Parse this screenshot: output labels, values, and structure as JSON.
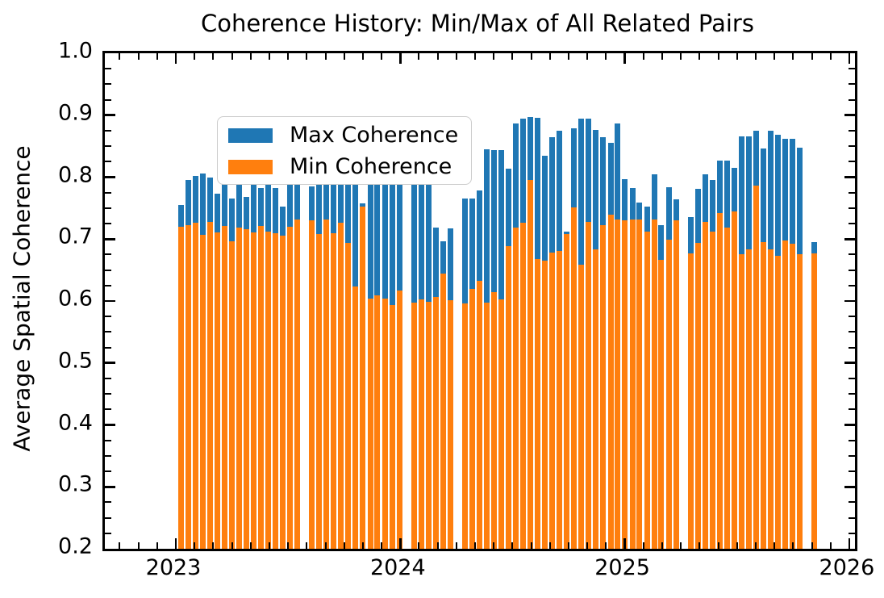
{
  "figure": {
    "title": "Coherence History: Min/Max of All Related Pairs",
    "ylabel": "Average Spatial Coherence"
  },
  "legend": {
    "items": [
      {
        "label": "Max Coherence",
        "color": "#1f77b4"
      },
      {
        "label": "Min Coherence",
        "color": "#ff7f0e"
      }
    ]
  },
  "chart_data": {
    "type": "bar",
    "title": "Coherence History: Min/Max of All Related Pairs",
    "xlabel": "",
    "ylabel": "Average Spatial Coherence",
    "ylim": [
      0.2,
      1.0
    ],
    "xlim": [
      2022.68,
      2026.03
    ],
    "grid": false,
    "legend_position": "upper left",
    "x_tick_labels": [
      "2023",
      "2024",
      "2025",
      "2026"
    ],
    "x_tick_values": [
      2023,
      2024,
      2025,
      2026
    ],
    "y_tick_labels": [
      "0.2",
      "0.3",
      "0.4",
      "0.5",
      "0.6",
      "0.7",
      "0.8",
      "0.9",
      "1.0"
    ],
    "y_tick_values": [
      0.2,
      0.3,
      0.4,
      0.5,
      0.6,
      0.7,
      0.8,
      0.9,
      1.0
    ],
    "y_minor_step": 0.025,
    "x_minor_step_years": 0.08333,
    "series": [
      {
        "name": "Max Coherence",
        "color": "#1f77b4"
      },
      {
        "name": "Min Coherence",
        "color": "#ff7f0e"
      }
    ],
    "bars_note": "each bar = [decimal_year, min_coherence, max_coherence]; orange drawn 0.2->min, blue min->max",
    "bars": [
      [
        2023.022,
        0.72,
        0.755
      ],
      [
        2023.054,
        0.722,
        0.796
      ],
      [
        2023.087,
        0.726,
        0.802
      ],
      [
        2023.119,
        0.707,
        0.806
      ],
      [
        2023.152,
        0.728,
        0.799
      ],
      [
        2023.184,
        0.711,
        0.773
      ],
      [
        2023.216,
        0.721,
        0.803
      ],
      [
        2023.249,
        0.696,
        0.766
      ],
      [
        2023.281,
        0.719,
        0.806
      ],
      [
        2023.314,
        0.716,
        0.768
      ],
      [
        2023.346,
        0.711,
        0.799
      ],
      [
        2023.379,
        0.721,
        0.783
      ],
      [
        2023.411,
        0.712,
        0.79
      ],
      [
        2023.444,
        0.709,
        0.783
      ],
      [
        2023.476,
        0.706,
        0.753
      ],
      [
        2023.509,
        0.72,
        0.843
      ],
      [
        2023.541,
        0.731,
        0.845
      ],
      [
        2023.606,
        0.73,
        0.785
      ],
      [
        2023.639,
        0.708,
        0.81
      ],
      [
        2023.671,
        0.731,
        0.808
      ],
      [
        2023.703,
        0.71,
        0.812
      ],
      [
        2023.736,
        0.726,
        0.814
      ],
      [
        2023.768,
        0.694,
        0.845
      ],
      [
        2023.801,
        0.624,
        0.843
      ],
      [
        2023.833,
        0.753,
        0.758
      ],
      [
        2023.866,
        0.604,
        0.81
      ],
      [
        2023.898,
        0.609,
        0.862
      ],
      [
        2023.931,
        0.604,
        0.86
      ],
      [
        2023.963,
        0.593,
        0.793
      ],
      [
        2023.996,
        0.617,
        0.796
      ],
      [
        2024.061,
        0.597,
        0.812
      ],
      [
        2024.093,
        0.602,
        0.812
      ],
      [
        2024.125,
        0.599,
        0.806
      ],
      [
        2024.158,
        0.607,
        0.718
      ],
      [
        2024.19,
        0.644,
        0.697
      ],
      [
        2024.223,
        0.601,
        0.717
      ],
      [
        2024.288,
        0.596,
        0.766
      ],
      [
        2024.32,
        0.62,
        0.766
      ],
      [
        2024.353,
        0.632,
        0.778
      ],
      [
        2024.385,
        0.597,
        0.845
      ],
      [
        2024.417,
        0.614,
        0.843
      ],
      [
        2024.45,
        0.602,
        0.843
      ],
      [
        2024.482,
        0.688,
        0.814
      ],
      [
        2024.515,
        0.718,
        0.886
      ],
      [
        2024.547,
        0.726,
        0.895
      ],
      [
        2024.58,
        0.795,
        0.897
      ],
      [
        2024.612,
        0.668,
        0.896
      ],
      [
        2024.645,
        0.665,
        0.834
      ],
      [
        2024.677,
        0.678,
        0.864
      ],
      [
        2024.709,
        0.681,
        0.875
      ],
      [
        2024.742,
        0.708,
        0.712
      ],
      [
        2024.774,
        0.751,
        0.879
      ],
      [
        2024.807,
        0.659,
        0.895
      ],
      [
        2024.839,
        0.728,
        0.895
      ],
      [
        2024.872,
        0.683,
        0.876
      ],
      [
        2024.904,
        0.723,
        0.864
      ],
      [
        2024.937,
        0.74,
        0.856
      ],
      [
        2024.969,
        0.731,
        0.887
      ],
      [
        2025.001,
        0.73,
        0.797
      ],
      [
        2025.034,
        0.731,
        0.782
      ],
      [
        2025.066,
        0.731,
        0.759
      ],
      [
        2025.099,
        0.712,
        0.753
      ],
      [
        2025.131,
        0.731,
        0.805
      ],
      [
        2025.163,
        0.667,
        0.723
      ],
      [
        2025.196,
        0.699,
        0.784
      ],
      [
        2025.228,
        0.73,
        0.764
      ],
      [
        2025.293,
        0.677,
        0.736
      ],
      [
        2025.326,
        0.694,
        0.781
      ],
      [
        2025.358,
        0.728,
        0.804
      ],
      [
        2025.391,
        0.712,
        0.796
      ],
      [
        2025.423,
        0.742,
        0.827
      ],
      [
        2025.455,
        0.718,
        0.827
      ],
      [
        2025.488,
        0.745,
        0.815
      ],
      [
        2025.52,
        0.676,
        0.866
      ],
      [
        2025.553,
        0.683,
        0.866
      ],
      [
        2025.585,
        0.786,
        0.875
      ],
      [
        2025.618,
        0.695,
        0.846
      ],
      [
        2025.65,
        0.684,
        0.875
      ],
      [
        2025.683,
        0.673,
        0.868
      ],
      [
        2025.715,
        0.698,
        0.862
      ],
      [
        2025.747,
        0.692,
        0.862
      ],
      [
        2025.78,
        0.675,
        0.848
      ],
      [
        2025.845,
        0.677,
        0.695
      ]
    ]
  }
}
